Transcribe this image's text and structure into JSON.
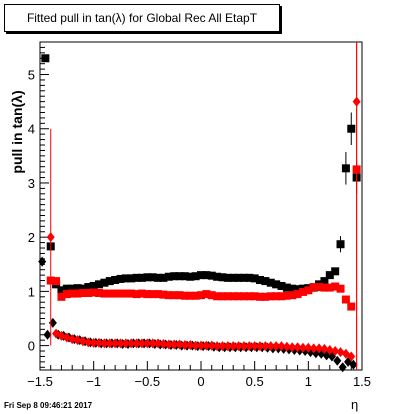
{
  "chart_data": {
    "type": "scatter",
    "title": "Fitted pull in tan(λ) for Global Rec All EtapT",
    "xlabel": "η",
    "ylabel": "pull in tan(λ)",
    "xlim": [
      -1.5,
      1.5
    ],
    "ylim": [
      -0.45,
      5.6
    ],
    "xticks": [
      -1.5,
      -1,
      -0.5,
      0,
      0.5,
      1,
      1.5
    ],
    "xtick_labels": [
      "−1.5",
      "−1",
      "−0.5",
      "0",
      "0.5",
      "1",
      "1.5"
    ],
    "yticks": [
      0,
      1,
      2,
      3,
      4,
      5
    ],
    "ytick_labels": [
      "0",
      "1",
      "2",
      "3",
      "4",
      "5"
    ],
    "grid": false,
    "series": [
      {
        "marker": "square",
        "color": "#000000",
        "x": [
          -1.45,
          -1.4,
          -1.35,
          -1.3,
          -1.25,
          -1.2,
          -1.15,
          -1.1,
          -1.05,
          -1.0,
          -0.95,
          -0.9,
          -0.85,
          -0.8,
          -0.75,
          -0.7,
          -0.65,
          -0.6,
          -0.55,
          -0.5,
          -0.45,
          -0.4,
          -0.35,
          -0.3,
          -0.25,
          -0.2,
          -0.15,
          -0.1,
          -0.05,
          0.0,
          0.05,
          0.1,
          0.15,
          0.2,
          0.25,
          0.3,
          0.35,
          0.4,
          0.45,
          0.5,
          0.55,
          0.6,
          0.65,
          0.7,
          0.75,
          0.8,
          0.85,
          0.9,
          0.95,
          1.0,
          1.05,
          1.1,
          1.15,
          1.2,
          1.25,
          1.3,
          1.35,
          1.4,
          1.45
        ],
        "y": [
          5.3,
          1.83,
          1.13,
          1.02,
          1.05,
          1.05,
          1.06,
          1.05,
          1.08,
          1.1,
          1.13,
          1.16,
          1.19,
          1.21,
          1.23,
          1.24,
          1.24,
          1.25,
          1.25,
          1.26,
          1.26,
          1.25,
          1.25,
          1.27,
          1.28,
          1.28,
          1.28,
          1.27,
          1.28,
          1.3,
          1.3,
          1.29,
          1.27,
          1.26,
          1.25,
          1.25,
          1.25,
          1.25,
          1.25,
          1.24,
          1.21,
          1.19,
          1.16,
          1.13,
          1.1,
          1.07,
          1.05,
          1.04,
          1.05,
          1.06,
          1.07,
          1.13,
          1.19,
          1.3,
          1.37,
          1.87,
          3.27,
          4.0,
          3.1
        ],
        "yerr": [
          0,
          0,
          0,
          0,
          0,
          0,
          0,
          0,
          0,
          0,
          0,
          0,
          0,
          0,
          0,
          0,
          0,
          0,
          0,
          0,
          0,
          0,
          0,
          0,
          0,
          0,
          0,
          0,
          0,
          0,
          0,
          0,
          0,
          0,
          0,
          0,
          0,
          0,
          0,
          0,
          0,
          0,
          0,
          0,
          0,
          0,
          0,
          0,
          0,
          0,
          0,
          0,
          0,
          0,
          0,
          0.15,
          0.3,
          0.3,
          0.3
        ]
      },
      {
        "marker": "square",
        "color": "#ff0000",
        "x": [
          -1.4,
          -1.35,
          -1.3,
          -1.25,
          -1.2,
          -1.15,
          -1.1,
          -1.05,
          -1.0,
          -0.95,
          -0.9,
          -0.85,
          -0.8,
          -0.75,
          -0.7,
          -0.65,
          -0.6,
          -0.55,
          -0.5,
          -0.45,
          -0.4,
          -0.35,
          -0.3,
          -0.25,
          -0.2,
          -0.15,
          -0.1,
          -0.05,
          0.0,
          0.05,
          0.1,
          0.15,
          0.2,
          0.25,
          0.3,
          0.35,
          0.4,
          0.45,
          0.5,
          0.55,
          0.6,
          0.65,
          0.7,
          0.75,
          0.8,
          0.85,
          0.9,
          0.95,
          1.0,
          1.05,
          1.1,
          1.15,
          1.2,
          1.25,
          1.3,
          1.35,
          1.4,
          1.45
        ],
        "y": [
          1.2,
          1.19,
          0.9,
          0.95,
          0.96,
          0.96,
          0.97,
          0.97,
          0.98,
          0.97,
          0.96,
          0.96,
          0.96,
          0.96,
          0.96,
          0.96,
          0.95,
          0.96,
          0.95,
          0.95,
          0.95,
          0.94,
          0.93,
          0.93,
          0.93,
          0.92,
          0.92,
          0.92,
          0.93,
          0.95,
          0.93,
          0.91,
          0.91,
          0.91,
          0.91,
          0.91,
          0.91,
          0.91,
          0.91,
          0.9,
          0.9,
          0.91,
          0.91,
          0.91,
          0.92,
          0.93,
          0.95,
          0.99,
          1.02,
          1.08,
          1.08,
          1.07,
          1.07,
          1.09,
          1.05,
          0.85,
          0.72,
          3.25
        ],
        "yerr": [
          0,
          0,
          0,
          0,
          0,
          0,
          0,
          0,
          0,
          0,
          0,
          0,
          0,
          0,
          0,
          0,
          0,
          0,
          0,
          0,
          0,
          0,
          0,
          0,
          0,
          0,
          0,
          0,
          0,
          0,
          0,
          0,
          0,
          0,
          0,
          0,
          0,
          0,
          0,
          0,
          0,
          0,
          0,
          0,
          0,
          0,
          0,
          0,
          0,
          0,
          0,
          0,
          0,
          0,
          0,
          0,
          0,
          4.5
        ]
      },
      {
        "marker": "diamond",
        "color": "#000000",
        "x": [
          -1.48,
          -1.43,
          -1.38,
          -1.33,
          -1.28,
          -1.23,
          -1.18,
          -1.13,
          -1.08,
          -1.03,
          -0.98,
          -0.93,
          -0.88,
          -0.83,
          -0.78,
          -0.73,
          -0.68,
          -0.63,
          -0.58,
          -0.53,
          -0.48,
          -0.43,
          -0.38,
          -0.33,
          -0.28,
          -0.23,
          -0.18,
          -0.13,
          -0.08,
          -0.03,
          0.02,
          0.07,
          0.12,
          0.17,
          0.22,
          0.27,
          0.32,
          0.37,
          0.42,
          0.47,
          0.52,
          0.57,
          0.62,
          0.67,
          0.72,
          0.77,
          0.82,
          0.87,
          0.92,
          0.97,
          1.02,
          1.07,
          1.12,
          1.17,
          1.22,
          1.27,
          1.32,
          1.37,
          1.42
        ],
        "y": [
          1.55,
          0.2,
          0.42,
          0.2,
          0.18,
          0.15,
          0.12,
          0.1,
          0.08,
          0.06,
          0.05,
          0.04,
          0.04,
          0.04,
          0.04,
          0.03,
          0.03,
          0.04,
          0.04,
          0.04,
          0.04,
          0.03,
          0.02,
          0.02,
          0.01,
          0.01,
          0.0,
          0.0,
          0.0,
          -0.01,
          -0.01,
          -0.01,
          -0.02,
          -0.03,
          -0.03,
          -0.03,
          -0.03,
          -0.03,
          -0.03,
          -0.03,
          -0.03,
          -0.03,
          -0.04,
          -0.05,
          -0.05,
          -0.06,
          -0.07,
          -0.08,
          -0.09,
          -0.1,
          -0.12,
          -0.14,
          -0.15,
          -0.18,
          -0.2,
          -0.28,
          -0.4,
          -0.3,
          -0.35
        ],
        "yerr": []
      },
      {
        "marker": "diamond",
        "color": "#ff0000",
        "x": [
          -1.4,
          -1.35,
          -1.3,
          -1.25,
          -1.2,
          -1.15,
          -1.1,
          -1.05,
          -1.0,
          -0.95,
          -0.9,
          -0.85,
          -0.8,
          -0.75,
          -0.7,
          -0.65,
          -0.6,
          -0.55,
          -0.5,
          -0.45,
          -0.4,
          -0.35,
          -0.3,
          -0.25,
          -0.2,
          -0.15,
          -0.1,
          -0.05,
          0.0,
          0.05,
          0.1,
          0.15,
          0.2,
          0.25,
          0.3,
          0.35,
          0.4,
          0.45,
          0.5,
          0.55,
          0.6,
          0.65,
          0.7,
          0.75,
          0.8,
          0.85,
          0.9,
          0.95,
          1.0,
          1.05,
          1.1,
          1.15,
          1.2,
          1.25,
          1.3,
          1.35,
          1.4,
          1.45
        ],
        "y": [
          2.0,
          0.22,
          0.18,
          0.15,
          0.12,
          0.1,
          0.08,
          0.06,
          0.05,
          0.05,
          0.04,
          0.04,
          0.04,
          0.04,
          0.04,
          0.04,
          0.04,
          0.04,
          0.04,
          0.04,
          0.04,
          0.03,
          0.02,
          0.02,
          0.02,
          0.01,
          0.01,
          0.0,
          0.0,
          0.0,
          0.0,
          -0.01,
          -0.01,
          -0.01,
          -0.01,
          -0.01,
          -0.01,
          -0.01,
          -0.01,
          -0.01,
          -0.01,
          -0.01,
          -0.01,
          -0.01,
          -0.02,
          -0.03,
          -0.03,
          -0.04,
          -0.04,
          -0.05,
          -0.05,
          -0.06,
          -0.08,
          -0.1,
          -0.12,
          -0.15,
          -0.2,
          4.5
        ],
        "yerr": [
          2.0,
          0,
          0,
          0,
          0,
          0,
          0,
          0,
          0,
          0,
          0,
          0,
          0,
          0,
          0,
          0,
          0,
          0,
          0,
          0,
          0,
          0,
          0,
          0,
          0,
          0,
          0,
          0,
          0,
          0,
          0,
          0,
          0,
          0,
          0,
          0,
          0,
          0,
          0,
          0,
          0,
          0,
          0,
          0,
          0,
          0,
          0,
          0,
          0,
          0,
          0,
          0,
          0,
          0,
          0,
          0,
          0,
          5.0
        ]
      }
    ]
  },
  "footer": {
    "date": "Fri Sep  8 09:46:21 2017"
  }
}
